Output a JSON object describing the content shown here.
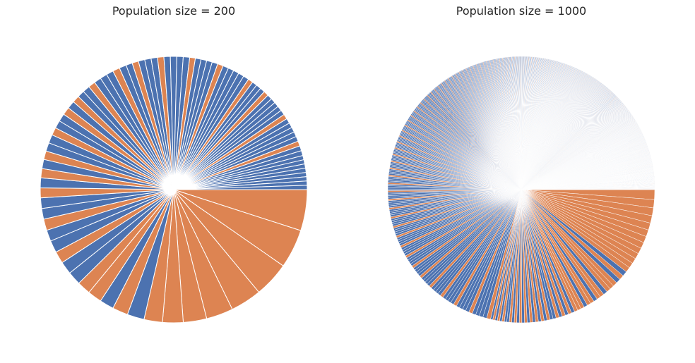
{
  "colors": {
    "blue": "#4c72b0",
    "orange": "#dd8452",
    "edge": "#ffffff"
  },
  "chart_data": [
    {
      "type": "pie",
      "title": "Population size = 200",
      "start_angle_deg": 0,
      "direction": "clockwise",
      "series": [
        {
          "name": "",
          "values": [
            0.058,
            0.055,
            0.05,
            0.044,
            0.038,
            0.033,
            0.029,
            0.026,
            0.024,
            0.022,
            0.02,
            0.02,
            0.019,
            0.019,
            0.018,
            0.017,
            0.017,
            0.016,
            0.016,
            0.015,
            0.015,
            0.014,
            0.014,
            0.013,
            0.013,
            0.012,
            0.012,
            0.012,
            0.011,
            0.011,
            0.011,
            0.011,
            0.011,
            0.01,
            0.01,
            0.01,
            0.01,
            0.01,
            0.01,
            0.01,
            0.01,
            0.01,
            0.009,
            0.009,
            0.009,
            0.009,
            0.009,
            0.009,
            0.009,
            0.009,
            0.009,
            0.009,
            0.008,
            0.008,
            0.008,
            0.008,
            0.008,
            0.008,
            0.008,
            0.008,
            0.008,
            0.008,
            0.008,
            0.007,
            0.007,
            0.007,
            0.007,
            0.007,
            0.007,
            0.007,
            0.007,
            0.007,
            0.007,
            0.007,
            0.007,
            0.007,
            0.007,
            0.007,
            0.007,
            0.007,
            0.007,
            0.007,
            0.006,
            0.006,
            0.006,
            0.006,
            0.006,
            0.006,
            0.006,
            0.006
          ]
        }
      ],
      "color_sequence": [
        "orange",
        "orange",
        "orange",
        "orange",
        "orange",
        "orange",
        "orange",
        "orange",
        "blue",
        "orange",
        "blue",
        "orange",
        "orange",
        "blue",
        "blue",
        "orange",
        "blue",
        "blue",
        "orange",
        "blue",
        "blue",
        "orange",
        "blue",
        "orange",
        "blue",
        "orange",
        "blue",
        "blue",
        "orange",
        "blue",
        "blue",
        "orange",
        "blue",
        "orange",
        "blue",
        "blue",
        "orange",
        "blue",
        "blue",
        "blue",
        "orange",
        "blue",
        "blue",
        "orange",
        "blue",
        "blue",
        "blue",
        "orange",
        "blue",
        "blue",
        "blue",
        "blue",
        "orange",
        "blue",
        "blue",
        "blue",
        "blue",
        "orange",
        "blue",
        "blue",
        "blue",
        "blue",
        "blue",
        "orange",
        "blue",
        "blue",
        "blue",
        "orange",
        "blue",
        "blue",
        "blue",
        "blue",
        "blue",
        "orange",
        "blue",
        "blue",
        "blue",
        "blue",
        "blue",
        "orange",
        "blue",
        "blue",
        "blue",
        "blue",
        "blue",
        "blue",
        "blue",
        "blue",
        "blue",
        "blue"
      ],
      "remaining_slices": {
        "count": 110,
        "description": "many very thin slices filling the rest of the circle"
      }
    },
    {
      "type": "pie",
      "title": "Population size = 1000",
      "start_angle_deg": 0,
      "direction": "clockwise",
      "series": [
        {
          "name": "",
          "values": [
            0.012,
            0.01,
            0.0095,
            0.009,
            0.0086,
            0.0082,
            0.0078,
            0.0075,
            0.0072,
            0.0069,
            0.0066,
            0.0064,
            0.0062,
            0.006,
            0.0058,
            0.0056,
            0.0054,
            0.0052,
            0.0051,
            0.005,
            0.0049,
            0.0048,
            0.0047,
            0.0046,
            0.0045,
            0.0044,
            0.0043,
            0.0042,
            0.0041,
            0.004,
            0.004,
            0.0039,
            0.0039,
            0.0038,
            0.0038,
            0.0037,
            0.0037,
            0.0036,
            0.0036,
            0.0035,
            0.0035,
            0.0034,
            0.0034,
            0.0033,
            0.0033,
            0.0032,
            0.0032,
            0.0031,
            0.0031,
            0.003,
            0.003,
            0.003,
            0.0029,
            0.0029,
            0.0029,
            0.0028,
            0.0028,
            0.0028,
            0.0027,
            0.0027
          ]
        }
      ],
      "color_sequence": [
        "orange",
        "orange",
        "orange",
        "orange",
        "orange",
        "orange",
        "orange",
        "orange",
        "orange",
        "orange",
        "orange",
        "orange",
        "orange",
        "blue",
        "orange",
        "blue",
        "orange",
        "orange",
        "orange",
        "blue",
        "orange",
        "orange",
        "blue",
        "orange",
        "orange",
        "blue",
        "orange",
        "orange",
        "orange",
        "blue",
        "orange",
        "blue",
        "orange",
        "blue",
        "orange",
        "blue",
        "blue",
        "orange",
        "blue",
        "orange",
        "blue",
        "orange",
        "blue",
        "orange",
        "blue",
        "orange",
        "blue",
        "orange",
        "blue",
        "orange",
        "blue",
        "orange",
        "blue",
        "blue",
        "orange",
        "blue",
        "orange",
        "blue",
        "orange",
        "blue"
      ],
      "remaining_slices": {
        "count": 940,
        "description": "hundreds of hairline slices filling the rest of the circle"
      }
    }
  ]
}
